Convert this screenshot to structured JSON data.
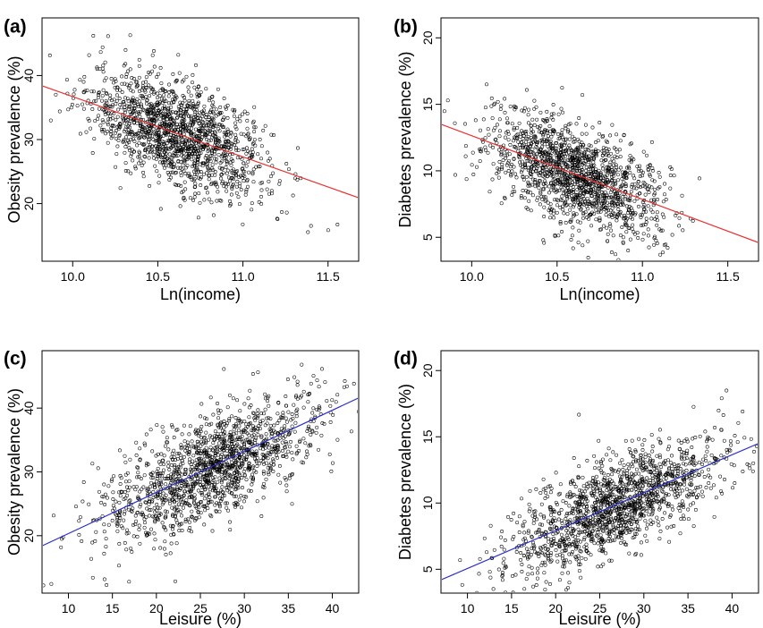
{
  "chart_data": [
    {
      "id": "a",
      "panel_label": "(a)",
      "type": "scatter",
      "xlabel": "Ln(income)",
      "ylabel": "Obesity prevalence (%)",
      "xlim": [
        9.82,
        11.68
      ],
      "ylim": [
        11,
        49
      ],
      "xticks": [
        10.0,
        10.5,
        11.0,
        11.5
      ],
      "xtick_labels": [
        "10.0",
        "10.5",
        "11.0",
        "11.5"
      ],
      "yticks": [
        20,
        30,
        40
      ],
      "ytick_labels": [
        "20",
        "30",
        "40"
      ],
      "points_summary": {
        "n": 1500,
        "x_center": 10.62,
        "x_sd": 0.26,
        "y_center": 31.2,
        "y_sd": 5.0
      },
      "fit_line": {
        "x": [
          9.82,
          11.68
        ],
        "y": [
          38.4,
          20.9
        ],
        "color": "#e8302e"
      }
    },
    {
      "id": "b",
      "panel_label": "(b)",
      "type": "scatter",
      "xlabel": "Ln(income)",
      "ylabel": "Diabetes prevalence (%)",
      "xlim": [
        9.82,
        11.68
      ],
      "ylim": [
        3.2,
        21.5
      ],
      "xticks": [
        10.0,
        10.5,
        11.0,
        11.5
      ],
      "xtick_labels": [
        "10.0",
        "10.5",
        "11.0",
        "11.5"
      ],
      "yticks": [
        5,
        10,
        15,
        20
      ],
      "ytick_labels": [
        "5",
        "10",
        "15",
        "20"
      ],
      "points_summary": {
        "n": 1500,
        "x_center": 10.62,
        "x_sd": 0.26,
        "y_center": 9.6,
        "y_sd": 2.3
      },
      "fit_line": {
        "x": [
          9.82,
          11.68
        ],
        "y": [
          13.5,
          4.6
        ],
        "color": "#e8302e"
      }
    },
    {
      "id": "c",
      "panel_label": "(c)",
      "type": "scatter",
      "xlabel": "Leisure (%)",
      "ylabel": "Obesity prevalence (%)",
      "xlim": [
        7,
        43
      ],
      "ylim": [
        11,
        49
      ],
      "xticks": [
        10,
        15,
        20,
        25,
        30,
        35,
        40
      ],
      "xtick_labels": [
        "10",
        "15",
        "20",
        "25",
        "30",
        "35",
        "40"
      ],
      "yticks": [
        20,
        30,
        40
      ],
      "ytick_labels": [
        "20",
        "30",
        "40"
      ],
      "points_summary": {
        "n": 1500,
        "x_center": 26.5,
        "x_sd": 6.0,
        "y_center": 31.0,
        "y_sd": 5.2
      },
      "fit_line": {
        "x": [
          7,
          43
        ],
        "y": [
          18.4,
          41.6
        ],
        "color": "#2b2fc9"
      }
    },
    {
      "id": "d",
      "panel_label": "(d)",
      "type": "scatter",
      "xlabel": "Leisure (%)",
      "ylabel": "Diabetes prevalence (%)",
      "xlim": [
        7,
        43
      ],
      "ylim": [
        3.2,
        21.5
      ],
      "xticks": [
        10,
        15,
        20,
        25,
        30,
        35,
        40
      ],
      "xtick_labels": [
        "10",
        "15",
        "20",
        "25",
        "30",
        "35",
        "40"
      ],
      "yticks": [
        5,
        10,
        15,
        20
      ],
      "ytick_labels": [
        "5",
        "10",
        "15",
        "20"
      ],
      "points_summary": {
        "n": 1500,
        "x_center": 26.5,
        "x_sd": 6.0,
        "y_center": 9.7,
        "y_sd": 2.3
      },
      "fit_line": {
        "x": [
          7,
          43
        ],
        "y": [
          4.2,
          14.5
        ],
        "color": "#2b2fc9"
      }
    }
  ]
}
